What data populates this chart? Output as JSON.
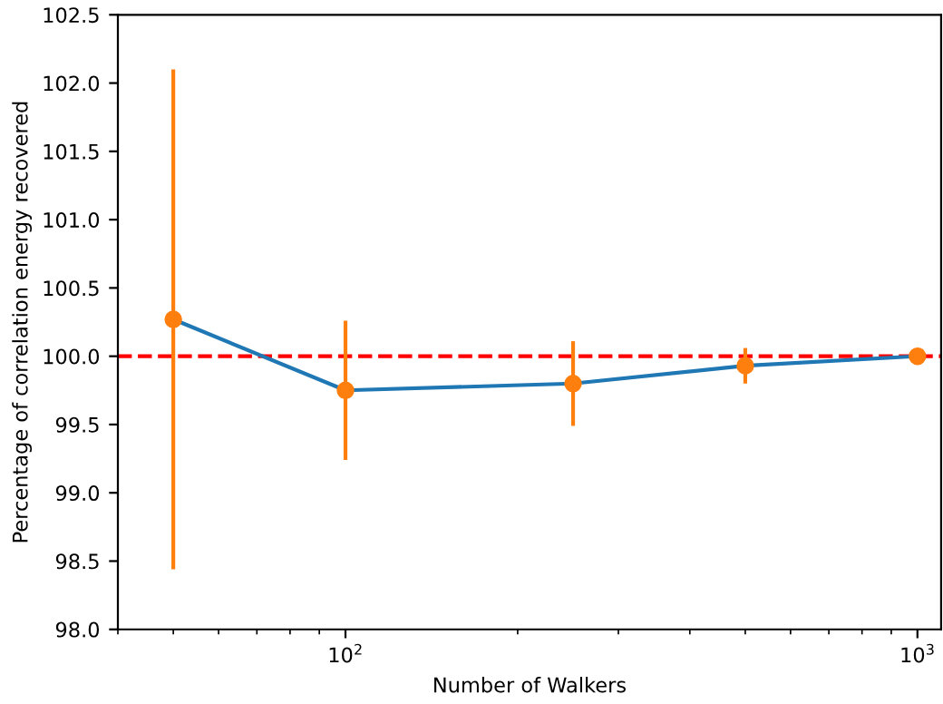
{
  "chart_data": {
    "type": "line",
    "xlabel": "Number of Walkers",
    "ylabel": "Percentage of correlation energy recovered",
    "log": "x",
    "grid": false,
    "legend": false,
    "xlim": [
      40,
      1100
    ],
    "xticks": [
      {
        "value": 100,
        "label": "10$^{2}$"
      },
      {
        "value": 1000,
        "label": "10$^{3}$"
      }
    ],
    "ylim": [
      98.0,
      102.5
    ],
    "yticks": [
      {
        "value": 98.0,
        "label": "98.0"
      },
      {
        "value": 98.5,
        "label": "98.5"
      },
      {
        "value": 99.0,
        "label": "99.0"
      },
      {
        "value": 99.5,
        "label": "99.5"
      },
      {
        "value": 100.0,
        "label": "100.0"
      },
      {
        "value": 100.5,
        "label": "100.5"
      },
      {
        "value": 101.0,
        "label": "101.0"
      },
      {
        "value": 101.5,
        "label": "101.5"
      },
      {
        "value": 102.0,
        "label": "102.0"
      },
      {
        "value": 102.5,
        "label": "102.5"
      }
    ],
    "series": [
      {
        "color": "#1f77b4",
        "x": [
          50,
          100,
          250,
          500,
          1000
        ],
        "values": [
          100.27,
          99.75,
          99.8,
          99.93,
          100.0
        ]
      },
      {
        "type": "scatter",
        "color": "#ff7f0e",
        "marker": "circle",
        "x": [
          50,
          100,
          250,
          500,
          1000
        ],
        "values": [
          100.27,
          99.75,
          99.8,
          99.93,
          100.0
        ],
        "errors": [
          1.83,
          0.51,
          0.31,
          0.13,
          0.01
        ]
      }
    ],
    "ref_lines": [
      {
        "axis": "y",
        "value": 100.0,
        "color": "#ff0000",
        "line_style": "dashed"
      }
    ]
  }
}
